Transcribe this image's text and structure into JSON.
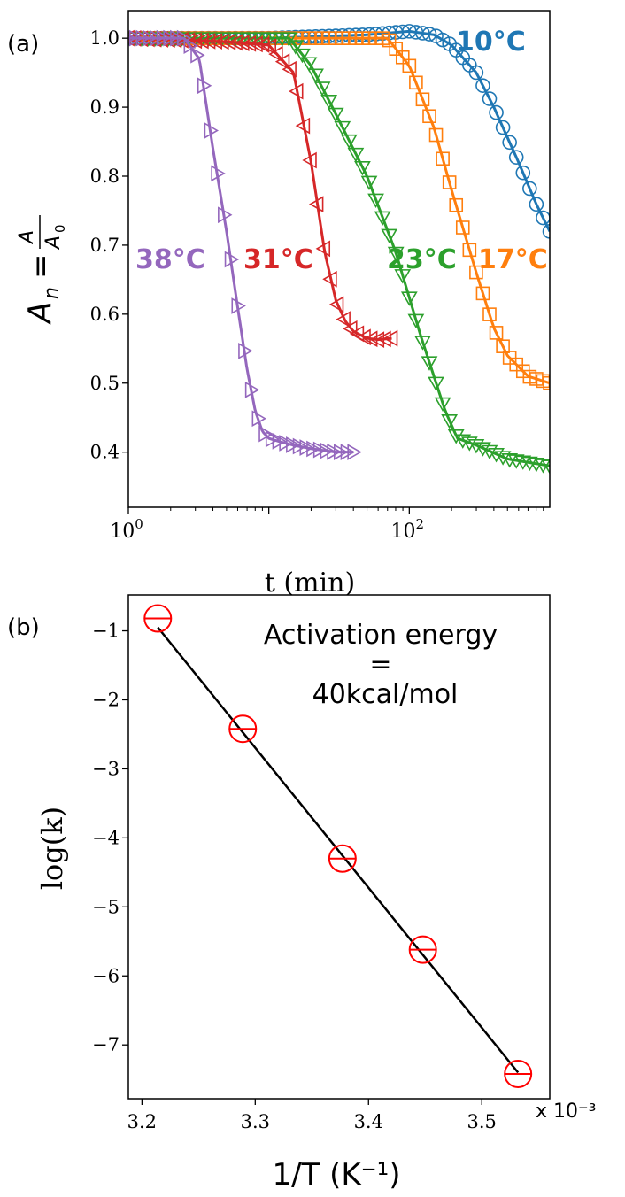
{
  "chart_data": [
    {
      "panel_label": "(a)",
      "type": "line",
      "x_scale": "log",
      "xlim": [
        1,
        1000
      ],
      "ylim": [
        0.32,
        1.04
      ],
      "xlabel": "t (min)",
      "ylabel": "A_n = A / A_0",
      "x_tick_labels": [
        {
          "x": 1,
          "base": "10",
          "exp": "0"
        },
        {
          "x": 100,
          "base": "10",
          "exp": "2"
        }
      ],
      "y_ticks": [
        0.4,
        0.5,
        0.6,
        0.7,
        0.8,
        0.9,
        1.0
      ],
      "y_tick_labels": [
        "0.4",
        "0.5",
        "0.6",
        "0.7",
        "0.8",
        "0.9",
        "1.0"
      ],
      "series": [
        {
          "name": "10°C",
          "color": "#1f77b4",
          "marker": "circle",
          "x": [
            1,
            10,
            50,
            100,
            150,
            200,
            300,
            400,
            600,
            800,
            1000
          ],
          "y": [
            1.0,
            1.0,
            1.005,
            1.01,
            1.005,
            0.99,
            0.95,
            0.9,
            0.82,
            0.76,
            0.72
          ]
        },
        {
          "name": "17°C",
          "color": "#ff7f0e",
          "marker": "square",
          "x": [
            1,
            10,
            70,
            100,
            150,
            200,
            300,
            400,
            500,
            700,
            1000
          ],
          "y": [
            1.0,
            1.0,
            1.0,
            0.96,
            0.87,
            0.78,
            0.66,
            0.58,
            0.54,
            0.51,
            0.5
          ]
        },
        {
          "name": "23°C",
          "color": "#2ca02c",
          "marker": "triangle-down",
          "x": [
            1,
            8,
            14,
            20,
            30,
            50,
            80,
            120,
            180,
            220,
            300,
            500,
            1000
          ],
          "y": [
            1.0,
            1.0,
            1.0,
            0.96,
            0.89,
            0.8,
            0.69,
            0.57,
            0.46,
            0.42,
            0.41,
            0.39,
            0.38
          ]
        },
        {
          "name": "31°C",
          "color": "#d62728",
          "marker": "triangle-left",
          "x": [
            1,
            5,
            10,
            15,
            20,
            25,
            30,
            35,
            40,
            50,
            60,
            75
          ],
          "y": [
            1.0,
            0.995,
            0.99,
            0.95,
            0.82,
            0.69,
            0.62,
            0.59,
            0.575,
            0.565,
            0.563,
            0.565
          ]
        },
        {
          "name": "38°C",
          "color": "#9467bd",
          "marker": "triangle-right",
          "x": [
            1,
            2.5,
            3.2,
            4,
            5,
            6,
            7,
            8,
            9,
            10,
            12,
            15,
            20,
            30,
            40
          ],
          "y": [
            1.0,
            1.0,
            0.97,
            0.84,
            0.72,
            0.61,
            0.52,
            0.46,
            0.43,
            0.42,
            0.415,
            0.41,
            0.405,
            0.4,
            0.4
          ]
        }
      ],
      "annotations": [
        "10°C",
        "17°C",
        "23°C",
        "31°C",
        "38°C"
      ]
    },
    {
      "panel_label": "(b)",
      "type": "scatter",
      "xlim": [
        3.188,
        3.56
      ],
      "ylim": [
        -7.78,
        -0.48
      ],
      "xlabel": "1/T  (K⁻¹)",
      "ylabel": "log(k)",
      "x_ticks": [
        3.2,
        3.3,
        3.4,
        3.5
      ],
      "x_tick_labels": [
        "3.2",
        "3.3",
        "3.4",
        "3.5"
      ],
      "y_ticks": [
        -1,
        -2,
        -3,
        -4,
        -5,
        -6,
        -7
      ],
      "y_tick_labels": [
        "−1",
        "−2",
        "−3",
        "−4",
        "−5",
        "−6",
        "−7"
      ],
      "x_offset_label": "x 10⁻³",
      "annotation": [
        "Activation energy",
        "=",
        "40kcal/mol"
      ],
      "points": {
        "x": [
          3.214,
          3.289,
          3.377,
          3.448,
          3.532
        ],
        "y": [
          -0.82,
          -2.42,
          -4.3,
          -5.62,
          -7.42
        ],
        "color": "#ff0000"
      },
      "fit_line": {
        "x": [
          3.214,
          3.532
        ],
        "y": [
          -0.95,
          -7.4
        ],
        "color": "#000000"
      }
    }
  ]
}
